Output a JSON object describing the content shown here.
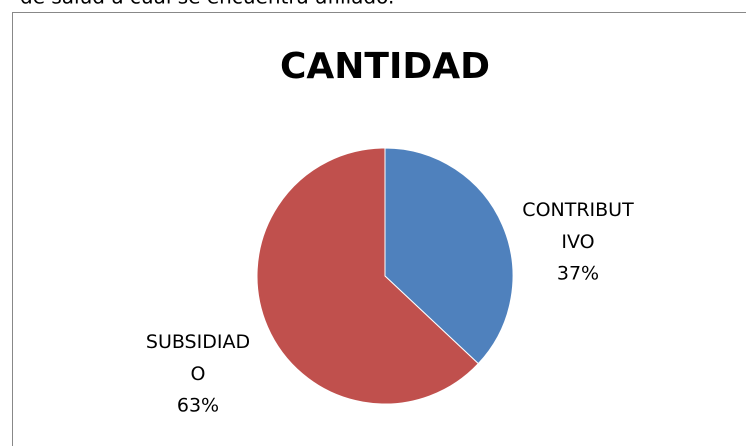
{
  "caption": "de salud a cual se encuentra afiliado.",
  "chart_data": {
    "type": "pie",
    "title": "CANTIDAD",
    "categories": [
      "CONTRIBUTIVO",
      "SUBSIDIADO"
    ],
    "values": [
      37,
      63
    ],
    "value_labels": [
      "37%",
      "63%"
    ],
    "colors": [
      "#4f81bd",
      "#c0504d"
    ]
  }
}
